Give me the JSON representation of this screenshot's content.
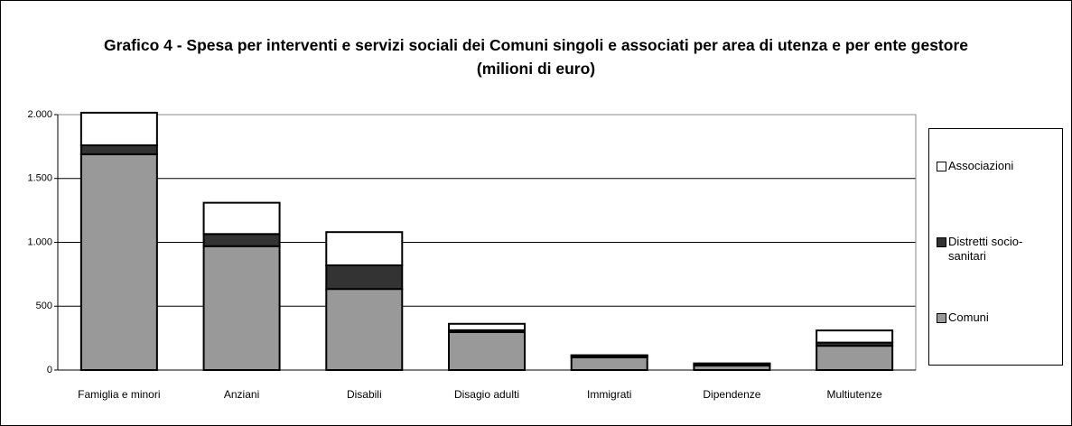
{
  "chart_data": {
    "type": "stacked_bar",
    "title": "Grafico 4 - Spesa per interventi e servizi sociali dei Comuni singoli e associati per area di utenza e per ente gestore (milioni di euro)",
    "categories": [
      "Famiglia e minori",
      "Anziani",
      "Disabili",
      "Disagio adulti",
      "Immigrati",
      "Dipendenze",
      "Multiutenze"
    ],
    "series": [
      {
        "name": "Comuni",
        "color": "#999999",
        "values": [
          1690,
          970,
          635,
          297,
          100,
          35,
          190
        ]
      },
      {
        "name": "Distretti socio-sanitari",
        "color": "#333333",
        "values": [
          70,
          95,
          185,
          15,
          13,
          15,
          25
        ]
      },
      {
        "name": "Associazioni",
        "color": "#ffffff",
        "values": [
          255,
          245,
          260,
          50,
          3,
          2,
          95
        ]
      }
    ],
    "ylim": [
      0,
      2000
    ],
    "yticks": [
      0,
      500,
      {
        "value": 1000,
        "label": "1.000"
      },
      {
        "value": 1500,
        "label": "1.500"
      },
      {
        "value": 2000,
        "label": "2.000"
      }
    ],
    "grid": true,
    "legend": "right"
  }
}
